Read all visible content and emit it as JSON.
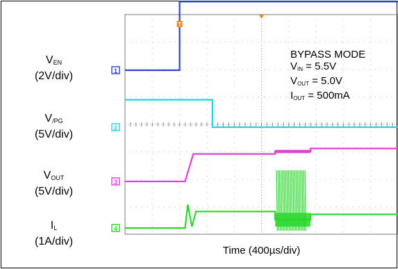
{
  "chart_data": {
    "type": "line",
    "title": "",
    "xlabel": "Time (400µs/div)",
    "grid": true,
    "x_divisions": 10,
    "x_unit": "div",
    "channels": [
      {
        "id": "1",
        "name": "V",
        "sub": "EN",
        "scale": "(2V/div)",
        "color": "#2e3fd1",
        "x": [
          0,
          2.0,
          2.0,
          10
        ],
        "y": [
          0,
          0,
          2.5,
          2.5
        ]
      },
      {
        "id": "2",
        "name": "V",
        "sub": "/PG",
        "scale": "(5V/div)",
        "color": "#22d3e0",
        "x": [
          0,
          3.2,
          3.2,
          10
        ],
        "y": [
          1.0,
          1.0,
          0,
          0
        ]
      },
      {
        "id": "3",
        "name": "V",
        "sub": "OUT",
        "scale": "(5V/div)",
        "color": "#e03cd6",
        "x": [
          0,
          2.2,
          2.5,
          5.5,
          5.5,
          6.8,
          6.8,
          10
        ],
        "y": [
          0,
          0,
          1.0,
          1.0,
          1.1,
          1.1,
          1.2,
          1.2
        ]
      },
      {
        "id": "4",
        "name": "I",
        "sub": "L",
        "scale": "(1A/div)",
        "color": "#29d62c",
        "x": [
          0,
          2.2,
          2.3,
          2.45,
          2.6,
          5.5,
          5.5,
          6.8,
          6.8,
          10
        ],
        "y": [
          0,
          0,
          0.85,
          0.05,
          0.6,
          0.6,
          0.3,
          0.3,
          0.5,
          0.5
        ]
      }
    ],
    "trigger_marker": "T",
    "annotation": {
      "mode": "BYPASS MODE",
      "lines": [
        {
          "name": "V",
          "sub": "IN",
          "value": " = 5.5V"
        },
        {
          "name": "V",
          "sub": "OUT",
          "value": " = 5.0V"
        },
        {
          "name": "I",
          "sub": "OUT",
          "value": " = 500mA"
        }
      ]
    }
  }
}
